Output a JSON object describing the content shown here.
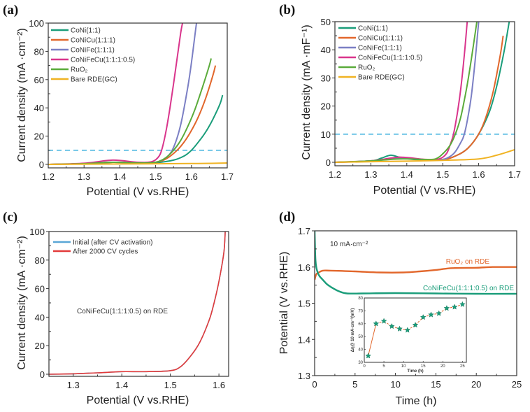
{
  "figure": {
    "panels": [
      "(a)",
      "(b)",
      "(c)",
      "(d)"
    ]
  },
  "chart_data": [
    {
      "id": "a",
      "panel_label": "(a)",
      "type": "line",
      "title": "",
      "xlabel": "Potential (V vs.RHE)",
      "ylabel": "Current density (mA ·cm⁻²)",
      "xlim": [
        1.2,
        1.7
      ],
      "ylim": [
        0,
        100
      ],
      "xticks": [
        1.2,
        1.3,
        1.4,
        1.5,
        1.6,
        1.7
      ],
      "xtick_labels": [
        "1.2",
        "1.3",
        "1.4",
        "1.5",
        "1.6",
        "1.7"
      ],
      "yticks": [
        0,
        20,
        40,
        60,
        80,
        100
      ],
      "ytick_labels": [
        "0",
        "20",
        "40",
        "60",
        "80",
        "100"
      ],
      "legend_position": "top-left",
      "reference_line": {
        "y": 10,
        "color": "#4db8e0",
        "style": "dashed"
      },
      "series": [
        {
          "name": "CoNi(1:1)",
          "color": "#1a9d7a",
          "x": [
            1.2,
            1.3,
            1.38,
            1.45,
            1.5,
            1.55,
            1.58,
            1.6,
            1.62,
            1.64,
            1.66,
            1.68,
            1.687
          ],
          "y": [
            0,
            0.5,
            1.5,
            1,
            1.2,
            3,
            6,
            10,
            16,
            23,
            32,
            43,
            49
          ]
        },
        {
          "name": "CoNiCu(1:1:1)",
          "color": "#e2672c",
          "x": [
            1.2,
            1.3,
            1.38,
            1.45,
            1.5,
            1.53,
            1.56,
            1.58,
            1.6,
            1.62,
            1.64,
            1.66,
            1.667
          ],
          "y": [
            0,
            0.5,
            1.5,
            1,
            1.5,
            4,
            10,
            16,
            24,
            34,
            47,
            63,
            70
          ]
        },
        {
          "name": "CoNiFe(1:1:1)",
          "color": "#7b7fc4",
          "x": [
            1.2,
            1.3,
            1.38,
            1.45,
            1.5,
            1.53,
            1.55,
            1.57,
            1.59,
            1.6,
            1.61,
            1.614
          ],
          "y": [
            0,
            0.5,
            1.5,
            1,
            1.5,
            5,
            12,
            28,
            55,
            72,
            92,
            100
          ]
        },
        {
          "name": "CoNiFeCu(1:1:1:0.5)",
          "color": "#d9358c",
          "x": [
            1.2,
            1.3,
            1.38,
            1.45,
            1.49,
            1.51,
            1.52,
            1.53,
            1.54,
            1.55,
            1.56,
            1.57,
            1.575
          ],
          "y": [
            0,
            0.8,
            3,
            1.5,
            2,
            6,
            13,
            25,
            40,
            57,
            75,
            93,
            100
          ]
        },
        {
          "name": "RuO₂",
          "color": "#5aab3a",
          "x": [
            1.2,
            1.3,
            1.38,
            1.45,
            1.5,
            1.53,
            1.55,
            1.57,
            1.59,
            1.61,
            1.63,
            1.65,
            1.655
          ],
          "y": [
            0,
            0.5,
            1.5,
            1,
            1.5,
            5,
            10,
            17,
            27,
            39,
            54,
            70,
            75
          ]
        },
        {
          "name": "Bare RDE(GC)",
          "color": "#f0b323",
          "x": [
            1.2,
            1.4,
            1.6,
            1.7
          ],
          "y": [
            0,
            0.3,
            0.6,
            1
          ]
        }
      ]
    },
    {
      "id": "b",
      "panel_label": "(b)",
      "type": "line",
      "title": "",
      "xlabel": "Potential (V vs.RHE)",
      "ylabel": "Current density (mA ·mF⁻¹)",
      "xlim": [
        1.2,
        1.7
      ],
      "ylim": [
        0,
        50
      ],
      "xticks": [
        1.2,
        1.3,
        1.4,
        1.5,
        1.6,
        1.7
      ],
      "xtick_labels": [
        "1.2",
        "1.3",
        "1.4",
        "1.5",
        "1.6",
        "1.7"
      ],
      "yticks": [
        0,
        10,
        20,
        30,
        40,
        50
      ],
      "ytick_labels": [
        "0",
        "10",
        "20",
        "30",
        "40",
        "50"
      ],
      "legend_position": "top-left",
      "reference_line": {
        "y": 10,
        "color": "#4db8e0",
        "style": "dashed"
      },
      "series": [
        {
          "name": "CoNi(1:1)",
          "color": "#1a9d7a",
          "x": [
            1.2,
            1.3,
            1.33,
            1.355,
            1.38,
            1.42,
            1.5,
            1.54,
            1.57,
            1.6,
            1.63,
            1.65,
            1.67,
            1.685
          ],
          "y": [
            0,
            0.5,
            1.5,
            2.5,
            1.8,
            1,
            1,
            2.5,
            5,
            10,
            18,
            27,
            39,
            50
          ]
        },
        {
          "name": "CoNiCu(1:1:1)",
          "color": "#e2672c",
          "x": [
            1.2,
            1.3,
            1.35,
            1.38,
            1.42,
            1.5,
            1.54,
            1.57,
            1.6,
            1.62,
            1.64,
            1.66,
            1.668
          ],
          "y": [
            0,
            0.5,
            1.2,
            1.8,
            1.2,
            1,
            2.5,
            5,
            10,
            16,
            25,
            38,
            45
          ]
        },
        {
          "name": "CoNiFe(1:1:1)",
          "color": "#7b7fc4",
          "x": [
            1.2,
            1.3,
            1.38,
            1.45,
            1.5,
            1.53,
            1.55,
            1.56,
            1.57,
            1.58,
            1.59,
            1.6
          ],
          "y": [
            0,
            0.5,
            1.5,
            1,
            1,
            3,
            7,
            10,
            16,
            24,
            36,
            50
          ]
        },
        {
          "name": "CoNiFeCu(1:1:1:0.5)",
          "color": "#d9358c",
          "x": [
            1.2,
            1.3,
            1.38,
            1.45,
            1.49,
            1.51,
            1.52,
            1.53,
            1.54,
            1.55,
            1.56,
            1.568
          ],
          "y": [
            0,
            0.5,
            1.8,
            1,
            1.2,
            3,
            6,
            10,
            17,
            26,
            38,
            50
          ]
        },
        {
          "name": "RuO₂",
          "color": "#5aab3a",
          "x": [
            1.2,
            1.3,
            1.38,
            1.45,
            1.48,
            1.5,
            1.52,
            1.535,
            1.55,
            1.56,
            1.57,
            1.58,
            1.595
          ],
          "y": [
            0,
            0.5,
            1.2,
            1,
            1.2,
            3,
            6,
            10,
            16,
            22,
            29,
            37,
            50
          ]
        },
        {
          "name": "Bare RDE(GC)",
          "color": "#f0b323",
          "x": [
            1.2,
            1.4,
            1.5,
            1.6,
            1.65,
            1.7
          ],
          "y": [
            0,
            0.4,
            0.7,
            1.2,
            2.5,
            4.5
          ]
        }
      ]
    },
    {
      "id": "c",
      "panel_label": "(c)",
      "type": "line",
      "title": "",
      "xlabel": "Potential (V vs.RHE)",
      "ylabel": "Current density (mA ·cm⁻²)",
      "xlim": [
        1.25,
        1.62
      ],
      "ylim": [
        0,
        100
      ],
      "xticks": [
        1.3,
        1.4,
        1.5,
        1.6
      ],
      "xtick_labels": [
        "1.3",
        "1.4",
        "1.5",
        "1.6"
      ],
      "yticks": [
        0,
        20,
        40,
        60,
        80,
        100
      ],
      "ytick_labels": [
        "0",
        "20",
        "40",
        "60",
        "80",
        "100"
      ],
      "legend_position": "top-left",
      "annotation": "CoNiFeCu(1:1:1:0.5) on RDE",
      "series": [
        {
          "name": "Initial (after CV activation)",
          "color": "#5aa6d6",
          "x": [
            1.25,
            1.3,
            1.35,
            1.4,
            1.45,
            1.5,
            1.52,
            1.54,
            1.56,
            1.58,
            1.59,
            1.6,
            1.61,
            1.613
          ],
          "y": [
            0,
            0.3,
            1,
            1.8,
            1.8,
            2.5,
            5,
            12,
            22,
            38,
            50,
            65,
            85,
            100
          ]
        },
        {
          "name": "After 2000 CV cycles",
          "color": "#e23a3a",
          "x": [
            1.25,
            1.3,
            1.35,
            1.4,
            1.45,
            1.5,
            1.52,
            1.54,
            1.56,
            1.58,
            1.59,
            1.6,
            1.61,
            1.613
          ],
          "y": [
            0,
            0.3,
            1,
            1.8,
            1.8,
            2.5,
            5,
            12,
            22,
            38,
            50,
            65,
            85,
            100
          ]
        }
      ]
    },
    {
      "id": "d",
      "panel_label": "(d)",
      "type": "line",
      "title": "",
      "xlabel": "Time (h)",
      "ylabel": "Potential (V vs.RHE)",
      "xlim": [
        0,
        25
      ],
      "ylim": [
        1.3,
        1.7
      ],
      "xticks": [
        0,
        5,
        10,
        15,
        20,
        25
      ],
      "xtick_labels": [
        "0",
        "5",
        "10",
        "15",
        "20",
        "25"
      ],
      "yticks": [
        1.3,
        1.4,
        1.5,
        1.6,
        1.7
      ],
      "ytick_labels": [
        "1.3",
        "1.4",
        "1.5",
        "1.6",
        "1.7"
      ],
      "annotation": "10 mA·cm⁻²",
      "series": [
        {
          "name": "RuO₂ on RDE",
          "color": "#e2672c",
          "x": [
            0,
            0.2,
            0.5,
            1,
            2,
            5,
            8,
            11,
            13,
            15,
            17,
            20,
            22,
            25
          ],
          "y": [
            1.565,
            1.58,
            1.585,
            1.59,
            1.59,
            1.588,
            1.585,
            1.585,
            1.588,
            1.592,
            1.597,
            1.598,
            1.6,
            1.6
          ]
        },
        {
          "name": "CoNiFeCu(1:1:1:0.5) on RDE",
          "color": "#1a9d7a",
          "x": [
            0,
            0.1,
            0.3,
            0.6,
            1,
            1.5,
            2,
            3,
            4,
            6,
            10,
            15,
            20,
            25
          ],
          "y": [
            1.7,
            1.62,
            1.59,
            1.575,
            1.565,
            1.553,
            1.545,
            1.533,
            1.527,
            1.527,
            1.528,
            1.527,
            1.526,
            1.526
          ]
        }
      ],
      "inset": {
        "type": "line",
        "xlabel": "Time (h)",
        "ylabel": "Δη@ 10 mA·cm⁻²(mV)",
        "xlim": [
          0,
          26
        ],
        "ylim": [
          30,
          80
        ],
        "xticks": [
          0,
          5,
          10,
          15,
          20,
          25
        ],
        "xtick_labels": [
          "0",
          "5",
          "10",
          "15",
          "20",
          "25"
        ],
        "yticks": [
          30,
          40,
          50,
          60,
          70,
          80
        ],
        "ytick_labels": [
          "30",
          "40",
          "50",
          "60",
          "70",
          "80"
        ],
        "marker": "star",
        "marker_color": "#1a9d7a",
        "line_color": "#e2672c",
        "x": [
          1,
          3,
          5,
          7,
          9,
          11,
          13,
          15,
          17,
          19,
          21,
          23,
          25
        ],
        "y": [
          35,
          60,
          62,
          58,
          56,
          55,
          59,
          65,
          67,
          68,
          72,
          73,
          75
        ]
      }
    }
  ]
}
